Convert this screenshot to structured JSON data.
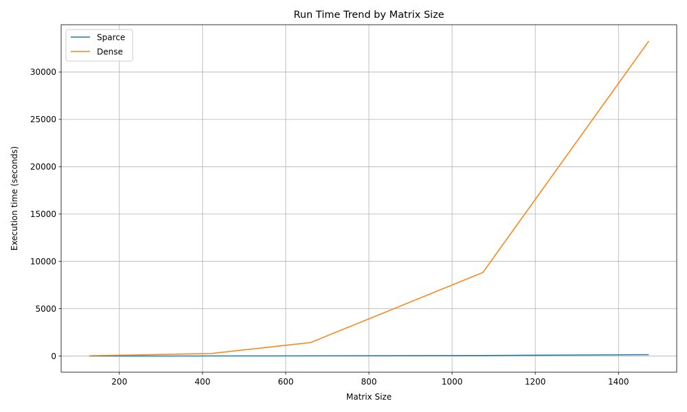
{
  "chart_data": {
    "type": "line",
    "title": "Run Time Trend by Matrix Size",
    "xlabel": "Matrix Size",
    "ylabel": "Execution time (seconds)",
    "xlim": [
      60,
      1540
    ],
    "ylim": [
      -1700,
      35000
    ],
    "xticks": [
      200,
      400,
      600,
      800,
      1000,
      1200,
      1400
    ],
    "yticks": [
      0,
      5000,
      10000,
      15000,
      20000,
      25000,
      30000
    ],
    "grid": true,
    "legend_position": "top-left",
    "series": [
      {
        "name": "Sparce",
        "color": "#1f77b4",
        "x": [
          128,
          420,
          660,
          1074,
          1473
        ],
        "y": [
          5,
          10,
          20,
          60,
          150
        ]
      },
      {
        "name": "Dense",
        "color": "#ff7f0e",
        "x": [
          128,
          420,
          660,
          1074,
          1473
        ],
        "y": [
          30,
          270,
          1430,
          8830,
          33270
        ]
      }
    ]
  }
}
